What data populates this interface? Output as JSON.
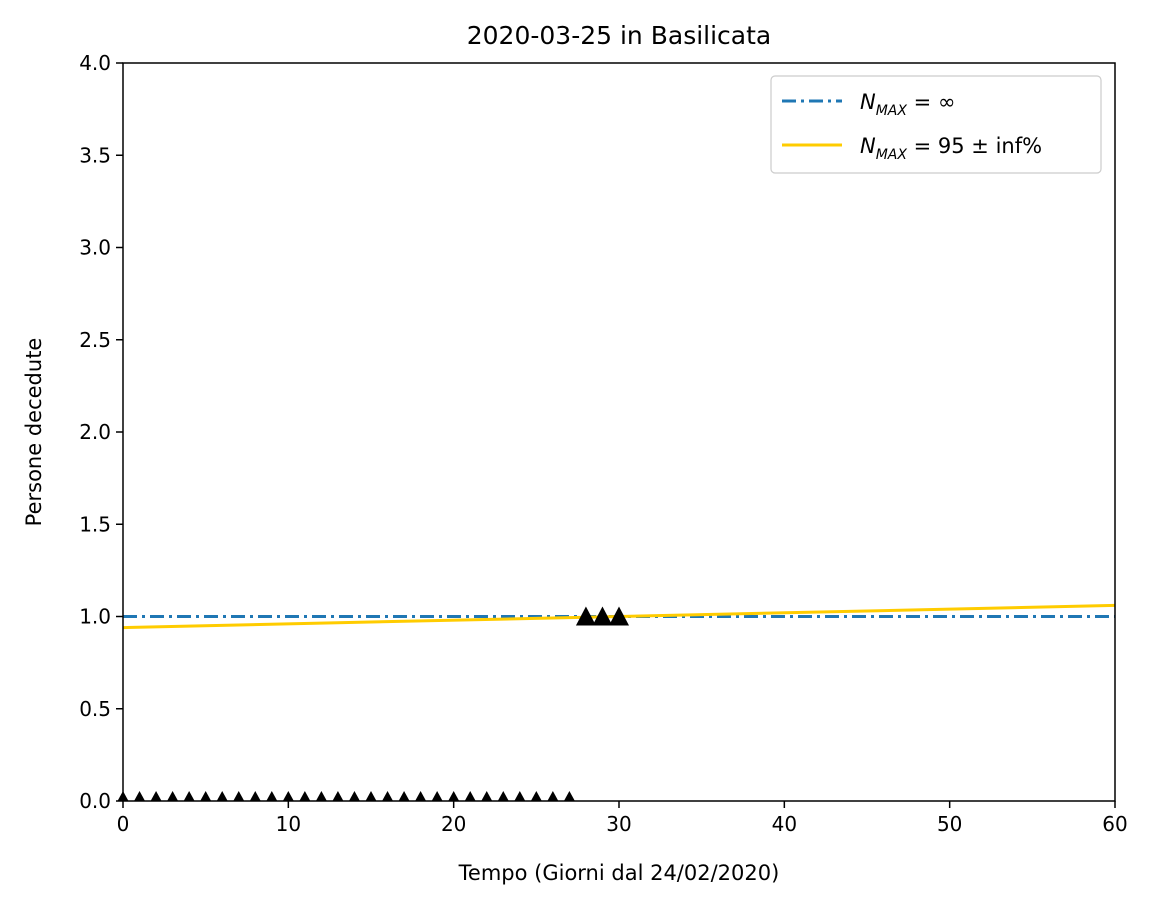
{
  "chart_data": {
    "type": "line",
    "title": "2020-03-25 in Basilicata",
    "xlabel": "Tempo (Giorni dal 24/02/2020)",
    "ylabel": "Persone decedute",
    "xlim": [
      0,
      60
    ],
    "ylim": [
      0,
      4.0
    ],
    "x_ticks": [
      0,
      10,
      20,
      30,
      40,
      50,
      60
    ],
    "x_tick_labels": [
      "0",
      "10",
      "20",
      "30",
      "40",
      "50",
      "60"
    ],
    "y_ticks": [
      0,
      0.5,
      1.0,
      1.5,
      2.0,
      2.5,
      3.0,
      3.5,
      4.0
    ],
    "y_tick_labels": [
      "0.0",
      "0.5",
      "1.0",
      "1.5",
      "2.0",
      "2.5",
      "3.0",
      "3.5",
      "4.0"
    ],
    "grid": false,
    "legend_position": "top-right",
    "series": [
      {
        "name": "N_MAX = ∞",
        "legend_label": "N_MAX = ∞",
        "style": "dashdot",
        "color": "#1f77b4",
        "x": [
          0,
          60
        ],
        "y": [
          1.0,
          1.0
        ]
      },
      {
        "name": "N_MAX = 95 ± inf%",
        "legend_label": "N_MAX = 95 ± inf%",
        "style": "solid",
        "color": "#ffcc00",
        "x": [
          0,
          60
        ],
        "y": [
          0.94,
          1.06
        ]
      },
      {
        "name": "data_zero",
        "marker": "triangle-small",
        "color": "#000000",
        "x": [
          0,
          1,
          2,
          3,
          4,
          5,
          6,
          7,
          8,
          9,
          10,
          11,
          12,
          13,
          14,
          15,
          16,
          17,
          18,
          19,
          20,
          21,
          22,
          23,
          24,
          25,
          26,
          27
        ],
        "y": [
          0,
          0,
          0,
          0,
          0,
          0,
          0,
          0,
          0,
          0,
          0,
          0,
          0,
          0,
          0,
          0,
          0,
          0,
          0,
          0,
          0,
          0,
          0,
          0,
          0,
          0,
          0,
          0
        ]
      },
      {
        "name": "data_recent",
        "marker": "triangle-large",
        "color": "#000000",
        "x": [
          28,
          29,
          30
        ],
        "y": [
          1,
          1,
          1
        ]
      }
    ]
  },
  "legend": {
    "items": [
      {
        "main": "N",
        "sub": "MAX",
        "rest": " = ∞"
      },
      {
        "main": "N",
        "sub": "MAX",
        "rest": " = 95 ± inf%"
      }
    ]
  }
}
